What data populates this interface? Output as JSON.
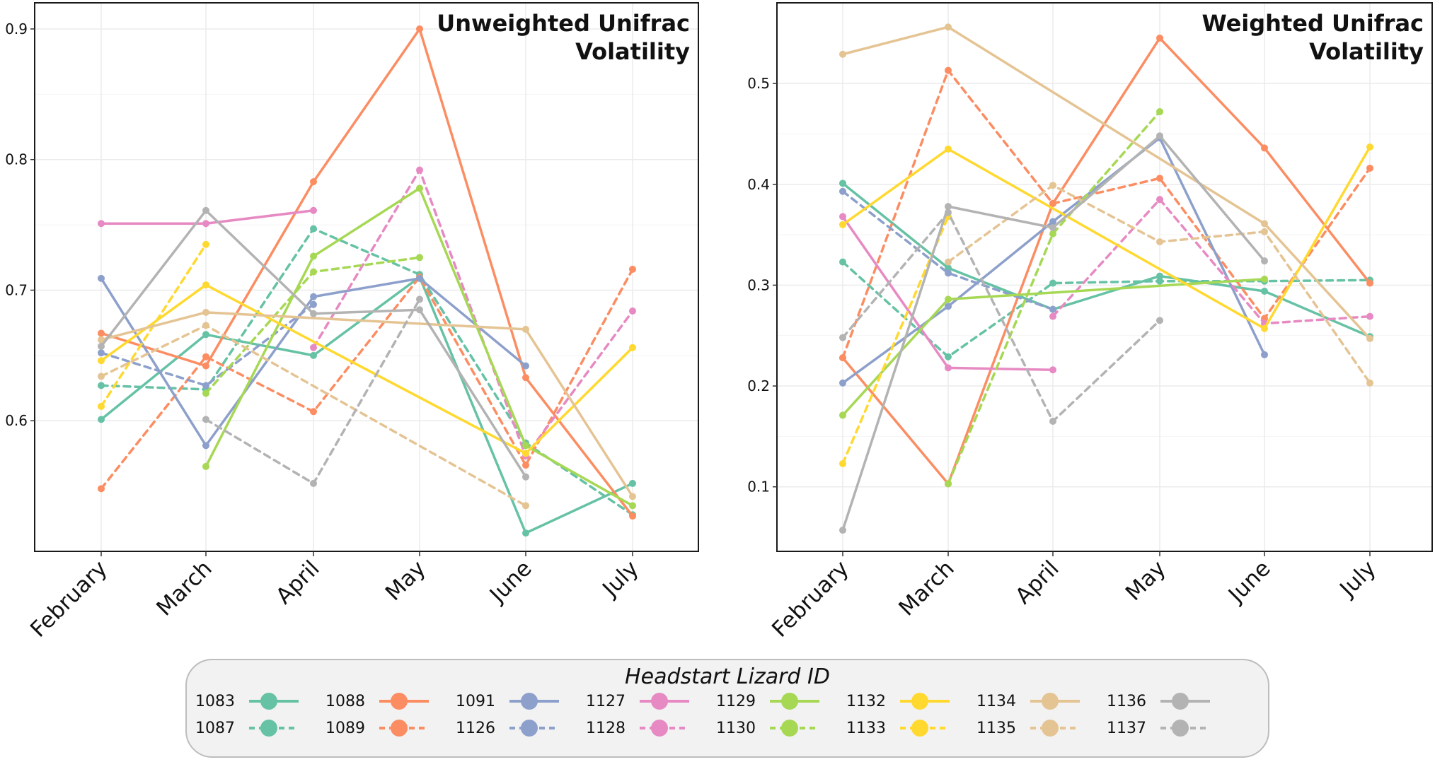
{
  "months": [
    "February",
    "March",
    "April",
    "May",
    "June",
    "July"
  ],
  "legend": {
    "title": "Headstart Lizard ID",
    "entries": [
      {
        "id": "1083",
        "color": "#66c2a5",
        "dash": false
      },
      {
        "id": "1087",
        "color": "#66c2a5",
        "dash": true
      },
      {
        "id": "1088",
        "color": "#fc8d62",
        "dash": false
      },
      {
        "id": "1089",
        "color": "#fc8d62",
        "dash": true
      },
      {
        "id": "1091",
        "color": "#8da0cb",
        "dash": false
      },
      {
        "id": "1126",
        "color": "#8da0cb",
        "dash": true
      },
      {
        "id": "1127",
        "color": "#e78ac3",
        "dash": false
      },
      {
        "id": "1128",
        "color": "#e78ac3",
        "dash": true
      },
      {
        "id": "1129",
        "color": "#a6d854",
        "dash": false
      },
      {
        "id": "1130",
        "color": "#a6d854",
        "dash": true
      },
      {
        "id": "1132",
        "color": "#ffd92f",
        "dash": false
      },
      {
        "id": "1133",
        "color": "#ffd92f",
        "dash": true
      },
      {
        "id": "1134",
        "color": "#e5c494",
        "dash": false
      },
      {
        "id": "1135",
        "color": "#e5c494",
        "dash": true
      },
      {
        "id": "1136",
        "color": "#b3b3b3",
        "dash": false
      },
      {
        "id": "1137",
        "color": "#b3b3b3",
        "dash": true
      }
    ]
  },
  "chart_data": [
    {
      "type": "line",
      "title": "Unweighted Unifrac Volatility",
      "title_lines": [
        "Unweighted Unifrac",
        "Volatility"
      ],
      "categories": [
        "February",
        "March",
        "April",
        "May",
        "June",
        "July"
      ],
      "ylim": [
        0.5,
        0.92
      ],
      "yticks": [
        0.6,
        0.7,
        0.8,
        0.9
      ],
      "ytick_labels": [
        "0.6",
        "0.7",
        "0.8",
        "0.9"
      ],
      "series": [
        {
          "name": "1083",
          "values": [
            0.601,
            0.666,
            0.65,
            0.71,
            0.514,
            0.552
          ]
        },
        {
          "name": "1087",
          "values": [
            0.627,
            0.624,
            0.747,
            0.712,
            0.583,
            0.528
          ]
        },
        {
          "name": "1088",
          "values": [
            0.667,
            0.642,
            0.783,
            0.9,
            0.633,
            0.527
          ]
        },
        {
          "name": "1089",
          "values": [
            0.548,
            0.649,
            0.607,
            0.71,
            0.566,
            0.716
          ]
        },
        {
          "name": "1091",
          "values": [
            0.709,
            0.581,
            0.695,
            0.709,
            0.642,
            null
          ]
        },
        {
          "name": "1126",
          "values": [
            0.652,
            0.627,
            0.689,
            null,
            null,
            null
          ]
        },
        {
          "name": "1127",
          "values": [
            0.751,
            0.751,
            0.761,
            null,
            null,
            null
          ]
        },
        {
          "name": "1128",
          "values": [
            null,
            null,
            0.656,
            0.792,
            0.573,
            0.684
          ]
        },
        {
          "name": "1129",
          "values": [
            null,
            0.565,
            0.726,
            0.778,
            0.581,
            0.535
          ]
        },
        {
          "name": "1130",
          "values": [
            null,
            0.621,
            0.714,
            0.725,
            null,
            null
          ]
        },
        {
          "name": "1132",
          "values": [
            0.646,
            0.704,
            null,
            null,
            0.575,
            0.656
          ]
        },
        {
          "name": "1133",
          "values": [
            0.611,
            0.735,
            null,
            null,
            null,
            null
          ]
        },
        {
          "name": "1134",
          "values": [
            0.662,
            0.683,
            null,
            null,
            0.67,
            0.542
          ]
        },
        {
          "name": "1135",
          "values": [
            0.634,
            0.673,
            null,
            null,
            0.535,
            null
          ]
        },
        {
          "name": "1136",
          "values": [
            0.657,
            0.761,
            0.682,
            0.685,
            0.557,
            null
          ]
        },
        {
          "name": "1137",
          "values": [
            null,
            0.601,
            0.552,
            0.693,
            null,
            null
          ]
        }
      ]
    },
    {
      "type": "line",
      "title": "Weighted Unifrac Volatility",
      "title_lines": [
        "Weighted Unifrac",
        "Volatility"
      ],
      "categories": [
        "February",
        "March",
        "April",
        "May",
        "June",
        "July"
      ],
      "ylim": [
        0.036,
        0.58
      ],
      "yticks": [
        0.1,
        0.2,
        0.3,
        0.4,
        0.5
      ],
      "ytick_labels": [
        "0.1",
        "0.2",
        "0.3",
        "0.4",
        "0.5"
      ],
      "series": [
        {
          "name": "1083",
          "values": [
            0.401,
            0.317,
            0.276,
            0.309,
            0.294,
            0.249
          ]
        },
        {
          "name": "1087",
          "values": [
            0.323,
            0.229,
            0.302,
            0.304,
            0.304,
            0.305
          ]
        },
        {
          "name": "1088",
          "values": [
            0.228,
            0.103,
            0.381,
            0.545,
            0.436,
            0.302
          ]
        },
        {
          "name": "1089",
          "values": [
            0.228,
            0.513,
            0.381,
            0.406,
            0.267,
            0.416
          ]
        },
        {
          "name": "1091",
          "values": [
            0.203,
            0.279,
            0.363,
            0.446,
            0.231,
            null
          ]
        },
        {
          "name": "1126",
          "values": [
            0.393,
            0.312,
            0.276,
            null,
            null,
            null
          ]
        },
        {
          "name": "1127",
          "values": [
            0.368,
            0.218,
            0.216,
            null,
            null,
            null
          ]
        },
        {
          "name": "1128",
          "values": [
            null,
            null,
            0.269,
            0.385,
            0.262,
            0.269
          ]
        },
        {
          "name": "1129",
          "values": [
            0.171,
            0.286,
            null,
            null,
            0.306,
            null
          ]
        },
        {
          "name": "1130",
          "values": [
            null,
            0.103,
            0.351,
            0.472,
            null,
            null
          ]
        },
        {
          "name": "1132",
          "values": [
            0.36,
            0.435,
            null,
            null,
            0.257,
            0.437
          ]
        },
        {
          "name": "1133",
          "values": [
            0.123,
            0.368,
            null,
            null,
            null,
            null
          ]
        },
        {
          "name": "1134",
          "values": [
            0.529,
            0.556,
            null,
            null,
            0.361,
            0.247
          ]
        },
        {
          "name": "1135",
          "values": [
            null,
            0.323,
            0.399,
            0.343,
            0.353,
            0.203
          ]
        },
        {
          "name": "1136",
          "values": [
            0.057,
            0.378,
            0.357,
            0.448,
            0.324,
            null
          ]
        },
        {
          "name": "1137",
          "values": [
            0.248,
            0.372,
            0.165,
            0.265,
            null,
            null
          ]
        }
      ]
    }
  ]
}
